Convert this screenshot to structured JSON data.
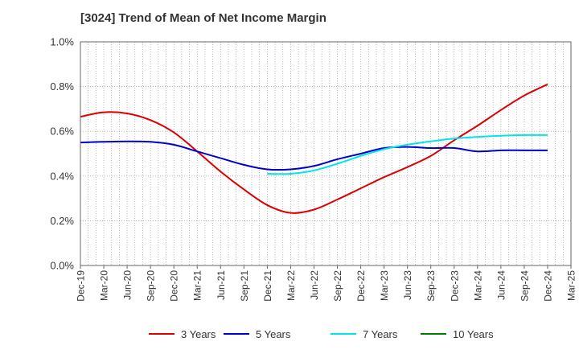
{
  "chart_data": {
    "type": "line",
    "title": "[3024]  Trend of Mean of Net Income Margin",
    "xlabel": "",
    "ylabel": "",
    "x_ticks": [
      "Dec-19",
      "Mar-20",
      "Jun-20",
      "Sep-20",
      "Dec-20",
      "Mar-21",
      "Jun-21",
      "Sep-21",
      "Dec-21",
      "Mar-22",
      "Jun-22",
      "Sep-22",
      "Dec-22",
      "Mar-23",
      "Jun-23",
      "Sep-23",
      "Dec-23",
      "Mar-24",
      "Jun-24",
      "Sep-24",
      "Dec-24",
      "Mar-25"
    ],
    "y_ticks": [
      "0.0%",
      "0.2%",
      "0.4%",
      "0.6%",
      "0.8%",
      "1.0%"
    ],
    "ylim": [
      0,
      1.0
    ],
    "y_unit": "%",
    "grid": true,
    "legend_position": "bottom",
    "series": [
      {
        "name": "3 Years",
        "color": "#dd0000",
        "points": [
          [
            "Dec-19",
            0.665
          ],
          [
            "Mar-20",
            0.685
          ],
          [
            "Jun-20",
            0.68
          ],
          [
            "Sep-20",
            0.65
          ],
          [
            "Dec-20",
            0.595
          ],
          [
            "Mar-21",
            0.51
          ],
          [
            "Jun-21",
            0.42
          ],
          [
            "Sep-21",
            0.34
          ],
          [
            "Dec-21",
            0.27
          ],
          [
            "Mar-22",
            0.235
          ],
          [
            "Jun-22",
            0.25
          ],
          [
            "Sep-22",
            0.295
          ],
          [
            "Dec-22",
            0.345
          ],
          [
            "Mar-23",
            0.395
          ],
          [
            "Jun-23",
            0.44
          ],
          [
            "Sep-23",
            0.49
          ],
          [
            "Dec-23",
            0.56
          ],
          [
            "Mar-24",
            0.625
          ],
          [
            "Jun-24",
            0.695
          ],
          [
            "Sep-24",
            0.76
          ],
          [
            "Dec-24",
            0.81
          ]
        ]
      },
      {
        "name": "5 Years",
        "color": "#0000cc",
        "points": [
          [
            "Dec-19",
            0.55
          ],
          [
            "Mar-20",
            0.553
          ],
          [
            "Jun-20",
            0.555
          ],
          [
            "Sep-20",
            0.553
          ],
          [
            "Dec-20",
            0.54
          ],
          [
            "Mar-21",
            0.51
          ],
          [
            "Jun-21",
            0.48
          ],
          [
            "Sep-21",
            0.45
          ],
          [
            "Dec-21",
            0.43
          ],
          [
            "Mar-22",
            0.43
          ],
          [
            "Jun-22",
            0.445
          ],
          [
            "Sep-22",
            0.475
          ],
          [
            "Dec-22",
            0.5
          ],
          [
            "Mar-23",
            0.525
          ],
          [
            "Jun-23",
            0.53
          ],
          [
            "Sep-23",
            0.525
          ],
          [
            "Dec-23",
            0.525
          ],
          [
            "Mar-24",
            0.51
          ],
          [
            "Jun-24",
            0.515
          ],
          [
            "Sep-24",
            0.515
          ],
          [
            "Dec-24",
            0.515
          ]
        ]
      },
      {
        "name": "7 Years",
        "color": "#00e5e5",
        "points": [
          [
            "Dec-21",
            0.41
          ],
          [
            "Mar-22",
            0.41
          ],
          [
            "Jun-22",
            0.425
          ],
          [
            "Sep-22",
            0.455
          ],
          [
            "Dec-22",
            0.49
          ],
          [
            "Mar-23",
            0.52
          ],
          [
            "Jun-23",
            0.54
          ],
          [
            "Sep-23",
            0.555
          ],
          [
            "Dec-23",
            0.568
          ],
          [
            "Mar-24",
            0.575
          ],
          [
            "Jun-24",
            0.58
          ],
          [
            "Sep-24",
            0.583
          ],
          [
            "Dec-24",
            0.583
          ]
        ]
      },
      {
        "name": "10 Years",
        "color": "#008000",
        "points": []
      }
    ]
  }
}
